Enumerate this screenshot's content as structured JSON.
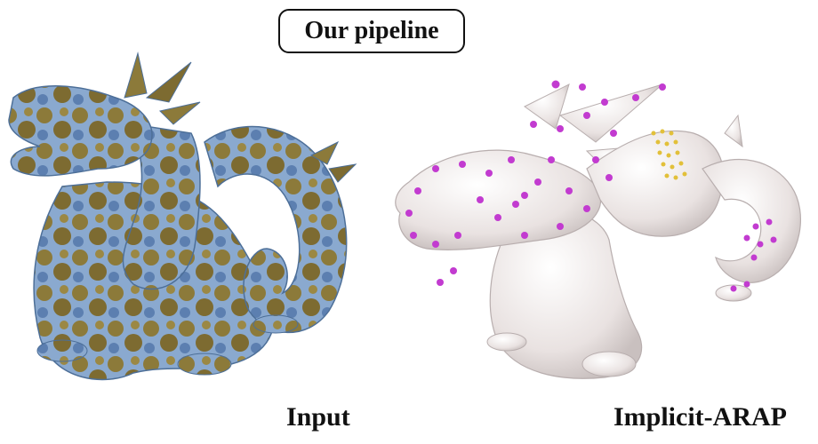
{
  "title": "Our pipeline",
  "labels": {
    "input": "Input",
    "output": "Implicit-ARAP"
  },
  "colors": {
    "input_mesh_base": "#7aa6d6",
    "input_patch": "#8c7a3a",
    "output_mesh": "#efe9e8",
    "handle_magenta": "#c23bd0",
    "handle_yellow": "#e2c03a"
  }
}
